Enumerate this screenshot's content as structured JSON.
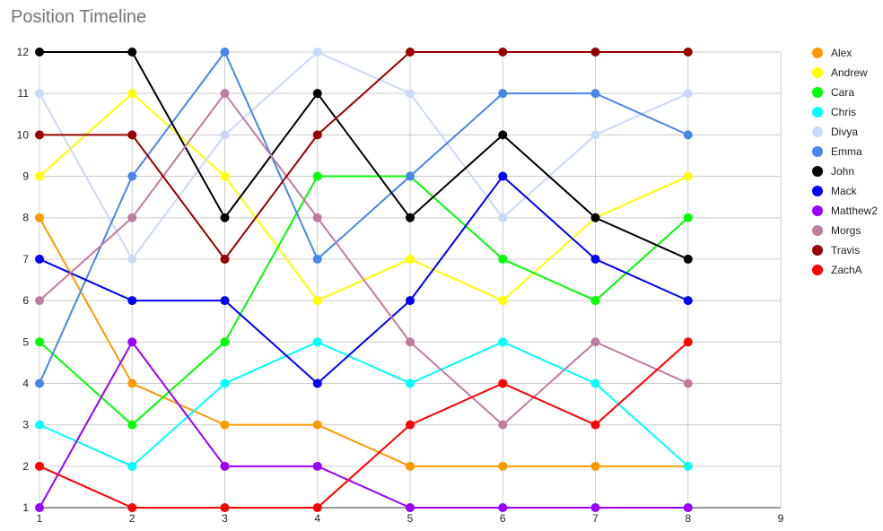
{
  "chart_data": {
    "type": "line",
    "title": "Position Timeline",
    "xlim": [
      1,
      9
    ],
    "ylim": [
      1,
      12
    ],
    "x_ticks": [
      "1",
      "2",
      "3",
      "4",
      "5",
      "6",
      "7",
      "8",
      "9"
    ],
    "y_ticks": [
      "1",
      "2",
      "3",
      "4",
      "5",
      "6",
      "7",
      "8",
      "9",
      "10",
      "11",
      "12"
    ],
    "x": [
      1,
      2,
      3,
      4,
      5,
      6,
      7,
      8
    ],
    "grid": true,
    "legend_position": "right",
    "series": [
      {
        "name": "Alex",
        "color": "#ff9900",
        "values": [
          8,
          4,
          3,
          3,
          2,
          2,
          2,
          2
        ]
      },
      {
        "name": "Andrew",
        "color": "#ffff00",
        "values": [
          9,
          11,
          9,
          6,
          7,
          6,
          8,
          9
        ]
      },
      {
        "name": "Cara",
        "color": "#00ff00",
        "values": [
          5,
          3,
          5,
          9,
          9,
          7,
          6,
          8
        ]
      },
      {
        "name": "Chris",
        "color": "#00ffff",
        "values": [
          3,
          2,
          4,
          5,
          4,
          5,
          4,
          2
        ]
      },
      {
        "name": "Divya",
        "color": "#c9daf8",
        "values": [
          11,
          7,
          10,
          12,
          11,
          8,
          10,
          11
        ]
      },
      {
        "name": "Emma",
        "color": "#4a86e8",
        "values": [
          4,
          9,
          12,
          7,
          9,
          11,
          11,
          10
        ]
      },
      {
        "name": "John",
        "color": "#000000",
        "values": [
          12,
          12,
          8,
          11,
          8,
          10,
          8,
          7
        ]
      },
      {
        "name": "Mack",
        "color": "#0000ff",
        "values": [
          7,
          6,
          6,
          4,
          6,
          9,
          7,
          6
        ]
      },
      {
        "name": "Matthew2",
        "color": "#9900ff",
        "values": [
          1,
          5,
          2,
          2,
          1,
          1,
          1,
          1
        ]
      },
      {
        "name": "Morgs",
        "color": "#c27ba0",
        "values": [
          6,
          8,
          11,
          8,
          5,
          3,
          5,
          4
        ]
      },
      {
        "name": "Travis",
        "color": "#980000",
        "values": [
          10,
          10,
          7,
          10,
          12,
          12,
          12,
          12
        ]
      },
      {
        "name": "ZachA",
        "color": "#ff0000",
        "values": [
          2,
          1,
          1,
          1,
          3,
          4,
          3,
          5
        ]
      }
    ]
  }
}
